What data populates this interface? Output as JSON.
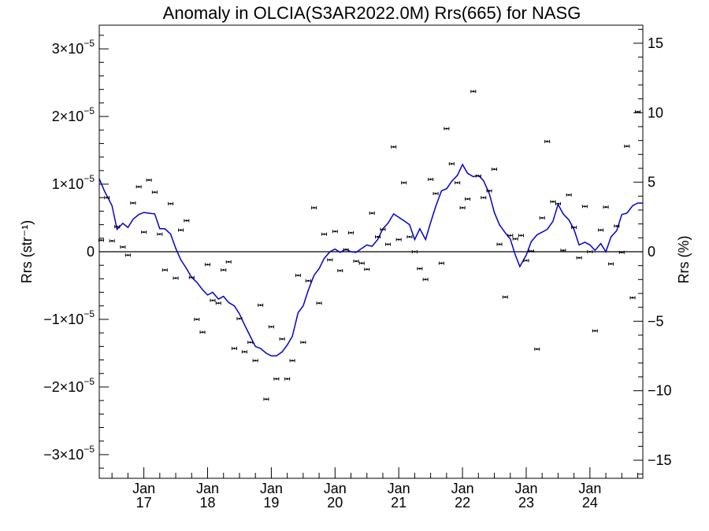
{
  "chart_data": {
    "type": "scatter",
    "title": "Anomaly in OLCIA(S3AR2022.0M) Rrs(665) for NASG",
    "ylabel_left": "Rrs (str⁻¹)",
    "ylabel_right": "Rrs (%)",
    "xlabel": "",
    "grid": false,
    "legend": "none",
    "x_range": [
      2016.3,
      2024.83
    ],
    "ylim_left": [
      -3.35e-05,
      3.35e-05
    ],
    "ylim_right": [
      -16.3,
      16.3
    ],
    "x_ticks": [
      {
        "value": 2017,
        "month": "Jan",
        "year": "17"
      },
      {
        "value": 2018,
        "month": "Jan",
        "year": "18"
      },
      {
        "value": 2019,
        "month": "Jan",
        "year": "19"
      },
      {
        "value": 2020,
        "month": "Jan",
        "year": "20"
      },
      {
        "value": 2021,
        "month": "Jan",
        "year": "21"
      },
      {
        "value": 2022,
        "month": "Jan",
        "year": "22"
      },
      {
        "value": 2023,
        "month": "Jan",
        "year": "23"
      },
      {
        "value": 2024,
        "month": "Jan",
        "year": "24"
      }
    ],
    "y_ticks_left": [
      {
        "value": 3e-05,
        "mantissa": "3",
        "exp": "−5"
      },
      {
        "value": 2e-05,
        "mantissa": "2",
        "exp": "−5"
      },
      {
        "value": 1e-05,
        "mantissa": "1",
        "exp": "−5"
      },
      {
        "value": 0,
        "mantissa": "0",
        "exp": ""
      },
      {
        "value": -1e-05,
        "mantissa": "−1",
        "exp": "−5"
      },
      {
        "value": -2e-05,
        "mantissa": "−2",
        "exp": "−5"
      },
      {
        "value": -3e-05,
        "mantissa": "−3",
        "exp": "−5"
      }
    ],
    "y_ticks_right": [
      15,
      10,
      5,
      0,
      -5,
      -10,
      -15
    ],
    "zero_line": 0,
    "series": [
      {
        "kind": "points",
        "color": "#000000",
        "points": [
          [
            2016.33,
            1.7e-06
          ],
          [
            2016.42,
            8e-06
          ],
          [
            2016.5,
            1.6e-06
          ],
          [
            2016.58,
            3.7e-06
          ],
          [
            2016.67,
            7e-07
          ],
          [
            2016.75,
            -5e-07
          ],
          [
            2016.83,
            7.2e-06
          ],
          [
            2016.92,
            9.6e-06
          ],
          [
            2017.0,
            2.9e-06
          ],
          [
            2017.08,
            1.06e-05
          ],
          [
            2017.17,
            8.8e-06
          ],
          [
            2017.25,
            2.6e-06
          ],
          [
            2017.33,
            -2.7e-06
          ],
          [
            2017.42,
            7.1e-06
          ],
          [
            2017.5,
            -3.9e-06
          ],
          [
            2017.58,
            3.2e-06
          ],
          [
            2017.67,
            4.6e-06
          ],
          [
            2017.75,
            -3.8e-06
          ],
          [
            2017.83,
            -1e-05
          ],
          [
            2017.92,
            -1.19e-05
          ],
          [
            2018.0,
            -1.9e-06
          ],
          [
            2018.08,
            -7.2e-06
          ],
          [
            2018.17,
            -7.6e-06
          ],
          [
            2018.25,
            -2.7e-06
          ],
          [
            2018.33,
            -1.5e-06
          ],
          [
            2018.42,
            -1.43e-05
          ],
          [
            2018.5,
            -9.9e-06
          ],
          [
            2018.58,
            -1.48e-05
          ],
          [
            2018.67,
            -1.34e-05
          ],
          [
            2018.75,
            -1.61e-05
          ],
          [
            2018.83,
            -7.9e-06
          ],
          [
            2018.92,
            -2.18e-05
          ],
          [
            2019.0,
            -1.11e-05
          ],
          [
            2019.08,
            -1.88e-05
          ],
          [
            2019.17,
            -1.29e-05
          ],
          [
            2019.25,
            -1.88e-05
          ],
          [
            2019.33,
            -1.61e-05
          ],
          [
            2019.42,
            -3.5e-06
          ],
          [
            2019.5,
            -1.34e-05
          ],
          [
            2019.58,
            -4.3e-06
          ],
          [
            2019.67,
            6.5e-06
          ],
          [
            2019.75,
            -7.6e-06
          ],
          [
            2019.83,
            2.6e-06
          ],
          [
            2019.92,
            -1.2e-06
          ],
          [
            2020.0,
            3e-06
          ],
          [
            2020.08,
            -2.8e-06
          ],
          [
            2020.17,
            3e-07
          ],
          [
            2020.25,
            2.8e-06
          ],
          [
            2020.33,
            -1.4e-06
          ],
          [
            2020.42,
            -1.7e-06
          ],
          [
            2020.5,
            -2.6e-06
          ],
          [
            2020.58,
            5.7e-06
          ],
          [
            2020.67,
            2.2e-06
          ],
          [
            2020.75,
            3.3e-06
          ],
          [
            2020.83,
            1.1e-06
          ],
          [
            2020.92,
            1.55e-05
          ],
          [
            2021.0,
            1.8e-06
          ],
          [
            2021.08,
            1.02e-05
          ],
          [
            2021.17,
            2.2e-06
          ],
          [
            2021.25,
            0.0
          ],
          [
            2021.33,
            -2.5e-06
          ],
          [
            2021.42,
            -4.1e-06
          ],
          [
            2021.5,
            1.07e-05
          ],
          [
            2021.58,
            8.6e-06
          ],
          [
            2021.67,
            -1.7e-06
          ],
          [
            2021.75,
            1.82e-05
          ],
          [
            2021.83,
            1.3e-05
          ],
          [
            2021.92,
            1.02e-05
          ],
          [
            2022.0,
            6.5e-06
          ],
          [
            2022.08,
            7.8e-06
          ],
          [
            2022.17,
            2.37e-05
          ],
          [
            2022.25,
            1.12e-05
          ],
          [
            2022.33,
            8e-06
          ],
          [
            2022.42,
            9e-06
          ],
          [
            2022.5,
            1.22e-05
          ],
          [
            2022.58,
            1.1e-06
          ],
          [
            2022.67,
            -6.7e-06
          ],
          [
            2022.75,
            2.4e-06
          ],
          [
            2022.83,
            1.9e-06
          ],
          [
            2022.92,
            2.4e-06
          ],
          [
            2023.0,
            -1.3e-06
          ],
          [
            2023.08,
            1e-07
          ],
          [
            2023.17,
            -1.44e-05
          ],
          [
            2023.25,
            5e-06
          ],
          [
            2023.33,
            1.63e-05
          ],
          [
            2023.42,
            7.4e-06
          ],
          [
            2023.5,
            7.1e-06
          ],
          [
            2023.58,
            2e-07
          ],
          [
            2023.67,
            8.4e-06
          ],
          [
            2023.75,
            3.6e-06
          ],
          [
            2023.83,
            -9e-07
          ],
          [
            2023.92,
            6.7e-06
          ],
          [
            2024.0,
            0.0
          ],
          [
            2024.08,
            -1.17e-05
          ],
          [
            2024.17,
            3.2e-06
          ],
          [
            2024.25,
            6.6e-06
          ],
          [
            2024.33,
            -1.8e-06
          ],
          [
            2024.42,
            3.8e-06
          ],
          [
            2024.5,
            -1e-07
          ],
          [
            2024.58,
            1.56e-05
          ],
          [
            2024.67,
            -6.8e-06
          ],
          [
            2024.75,
            2.07e-05
          ]
        ]
      },
      {
        "kind": "line",
        "color": "#0000d0",
        "points": [
          [
            2016.3,
            1.08e-05
          ],
          [
            2016.38,
            9e-06
          ],
          [
            2016.5,
            6.8e-06
          ],
          [
            2016.58,
            3.3e-06
          ],
          [
            2016.67,
            4.2e-06
          ],
          [
            2016.75,
            3.6e-06
          ],
          [
            2016.83,
            4.8e-06
          ],
          [
            2016.92,
            5.5e-06
          ],
          [
            2017.0,
            5.8e-06
          ],
          [
            2017.08,
            5.7e-06
          ],
          [
            2017.17,
            5.6e-06
          ],
          [
            2017.25,
            3.4e-06
          ],
          [
            2017.33,
            3.4e-06
          ],
          [
            2017.42,
            2.6e-06
          ],
          [
            2017.5,
            5e-07
          ],
          [
            2017.58,
            -1.2e-06
          ],
          [
            2017.67,
            -2.5e-06
          ],
          [
            2017.75,
            -3.8e-06
          ],
          [
            2017.83,
            -4.5e-06
          ],
          [
            2017.92,
            -5.6e-06
          ],
          [
            2018.0,
            -6.4e-06
          ],
          [
            2018.08,
            -6e-06
          ],
          [
            2018.17,
            -7e-06
          ],
          [
            2018.25,
            -6.6e-06
          ],
          [
            2018.33,
            -7.5e-06
          ],
          [
            2018.42,
            -8e-06
          ],
          [
            2018.5,
            -9.2e-06
          ],
          [
            2018.58,
            -1.08e-05
          ],
          [
            2018.67,
            -1.25e-05
          ],
          [
            2018.75,
            -1.4e-05
          ],
          [
            2018.83,
            -1.43e-05
          ],
          [
            2018.92,
            -1.5e-05
          ],
          [
            2019.0,
            -1.54e-05
          ],
          [
            2019.08,
            -1.54e-05
          ],
          [
            2019.17,
            -1.48e-05
          ],
          [
            2019.25,
            -1.38e-05
          ],
          [
            2019.33,
            -1.25e-05
          ],
          [
            2019.42,
            -9e-06
          ],
          [
            2019.5,
            -8e-06
          ],
          [
            2019.58,
            -5.7e-06
          ],
          [
            2019.67,
            -3.5e-06
          ],
          [
            2019.75,
            -2.5e-06
          ],
          [
            2019.83,
            -1e-06
          ],
          [
            2019.92,
            0.0
          ],
          [
            2020.0,
            4e-07
          ],
          [
            2020.08,
            -1e-07
          ],
          [
            2020.17,
            4e-07
          ],
          [
            2020.25,
            0.0
          ],
          [
            2020.33,
            -1e-07
          ],
          [
            2020.42,
            5e-07
          ],
          [
            2020.5,
            1e-06
          ],
          [
            2020.58,
            8e-07
          ],
          [
            2020.67,
            1.8e-06
          ],
          [
            2020.75,
            3.4e-06
          ],
          [
            2020.83,
            4.2e-06
          ],
          [
            2020.92,
            5.6e-06
          ],
          [
            2021.0,
            5.1e-06
          ],
          [
            2021.08,
            4.6e-06
          ],
          [
            2021.17,
            4e-06
          ],
          [
            2021.25,
            1.8e-06
          ],
          [
            2021.33,
            3.4e-06
          ],
          [
            2021.42,
            1.8e-06
          ],
          [
            2021.5,
            4.3e-06
          ],
          [
            2021.58,
            6.7e-06
          ],
          [
            2021.67,
            9e-06
          ],
          [
            2021.75,
            9.3e-06
          ],
          [
            2021.83,
            1.04e-05
          ],
          [
            2021.92,
            1.13e-05
          ],
          [
            2022.0,
            1.29e-05
          ],
          [
            2022.08,
            1.16e-05
          ],
          [
            2022.17,
            1.11e-05
          ],
          [
            2022.25,
            1.13e-05
          ],
          [
            2022.33,
            1.05e-05
          ],
          [
            2022.42,
            8.6e-06
          ],
          [
            2022.5,
            5.8e-06
          ],
          [
            2022.58,
            4e-06
          ],
          [
            2022.67,
            2.8e-06
          ],
          [
            2022.75,
            1.9e-06
          ],
          [
            2022.83,
            -5e-07
          ],
          [
            2022.9,
            -2.2e-06
          ],
          [
            2023.0,
            -5e-07
          ],
          [
            2023.08,
            1.5e-06
          ],
          [
            2023.17,
            2.5e-06
          ],
          [
            2023.25,
            2.9e-06
          ],
          [
            2023.33,
            3.3e-06
          ],
          [
            2023.42,
            4.5e-06
          ],
          [
            2023.5,
            7e-06
          ],
          [
            2023.58,
            5.6e-06
          ],
          [
            2023.67,
            4.7e-06
          ],
          [
            2023.75,
            3.3e-06
          ],
          [
            2023.83,
            1e-06
          ],
          [
            2023.92,
            1.4e-06
          ],
          [
            2024.0,
            1e-06
          ],
          [
            2024.08,
            2e-07
          ],
          [
            2024.17,
            1.2e-06
          ],
          [
            2024.25,
            0.0
          ],
          [
            2024.33,
            2.2e-06
          ],
          [
            2024.42,
            3.1e-06
          ],
          [
            2024.5,
            5.5e-06
          ],
          [
            2024.58,
            5.7e-06
          ],
          [
            2024.67,
            6.8e-06
          ],
          [
            2024.75,
            7.2e-06
          ],
          [
            2024.83,
            7.2e-06
          ]
        ]
      }
    ]
  }
}
